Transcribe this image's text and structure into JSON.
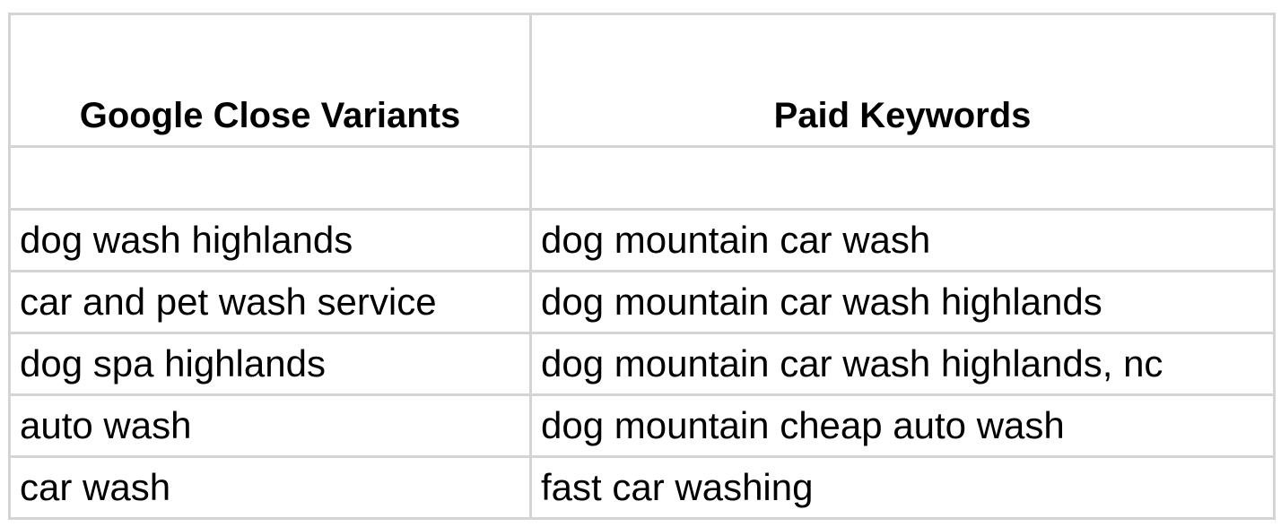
{
  "table": {
    "headers": [
      "Google Close Variants",
      "Paid Keywords"
    ],
    "rows": [
      [
        "dog wash highlands",
        "dog mountain car wash"
      ],
      [
        "car and pet wash service",
        "dog mountain car wash highlands"
      ],
      [
        "dog spa highlands",
        "dog mountain car wash highlands, nc"
      ],
      [
        "auto wash",
        "dog mountain cheap auto wash"
      ],
      [
        "car wash",
        "fast car washing"
      ]
    ]
  },
  "colors": {
    "gridline": "#d4d4d4",
    "text": "#000000",
    "background": "#ffffff"
  }
}
